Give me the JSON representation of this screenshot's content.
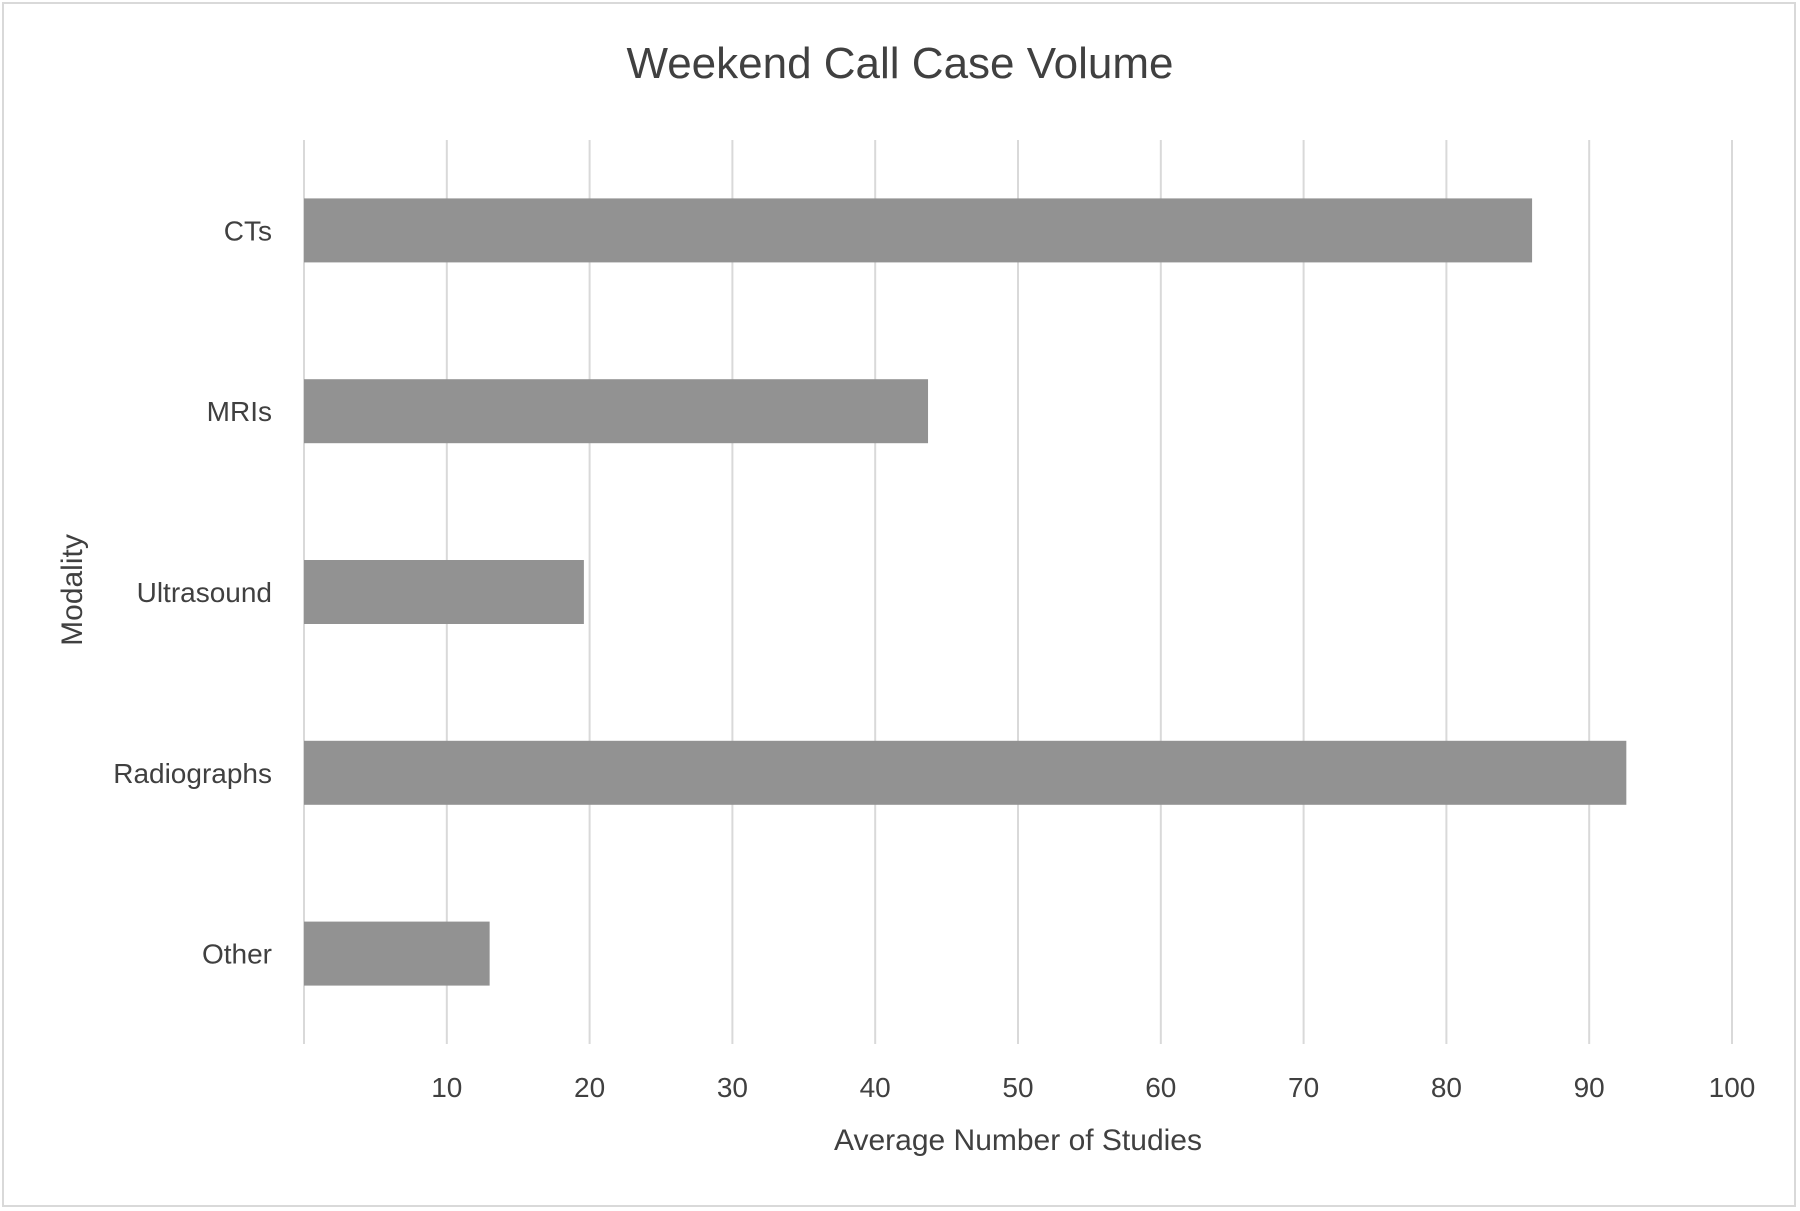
{
  "chart_data": {
    "type": "bar",
    "orientation": "horizontal",
    "title": "Weekend Call Case Volume",
    "xlabel": "Average Number of Studies",
    "ylabel": "Modality",
    "categories": [
      "CTs",
      "MRIs",
      "Ultrasound",
      "Radiographs",
      "Other"
    ],
    "values": [
      86,
      43.7,
      19.6,
      92.6,
      13
    ],
    "xlim": [
      0,
      100
    ],
    "xticks": [
      10,
      20,
      30,
      40,
      50,
      60,
      70,
      80,
      90,
      100
    ],
    "grid": "vertical",
    "legend": "none",
    "colors": {
      "bar": "#929292",
      "grid": "#d9d9d9",
      "text": "#404040",
      "frame": "#d9d9d9"
    }
  }
}
